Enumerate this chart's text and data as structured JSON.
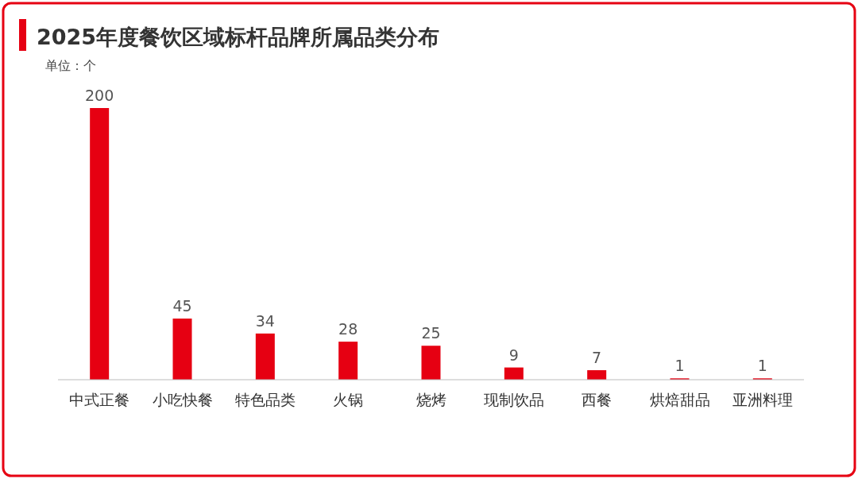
{
  "chart_data": {
    "type": "bar",
    "title": "2025年度餐饮区域标杆品牌所属品类分布",
    "ylabel": "单位：个",
    "categories": [
      "中式正餐",
      "小吃快餐",
      "特色品类",
      "火锅",
      "烧烤",
      "现制饮品",
      "西餐",
      "烘焙甜品",
      "亚洲料理"
    ],
    "values": [
      200,
      45,
      34,
      28,
      25,
      9,
      7,
      1,
      1
    ],
    "color": "#e60012",
    "data_labels": true
  }
}
